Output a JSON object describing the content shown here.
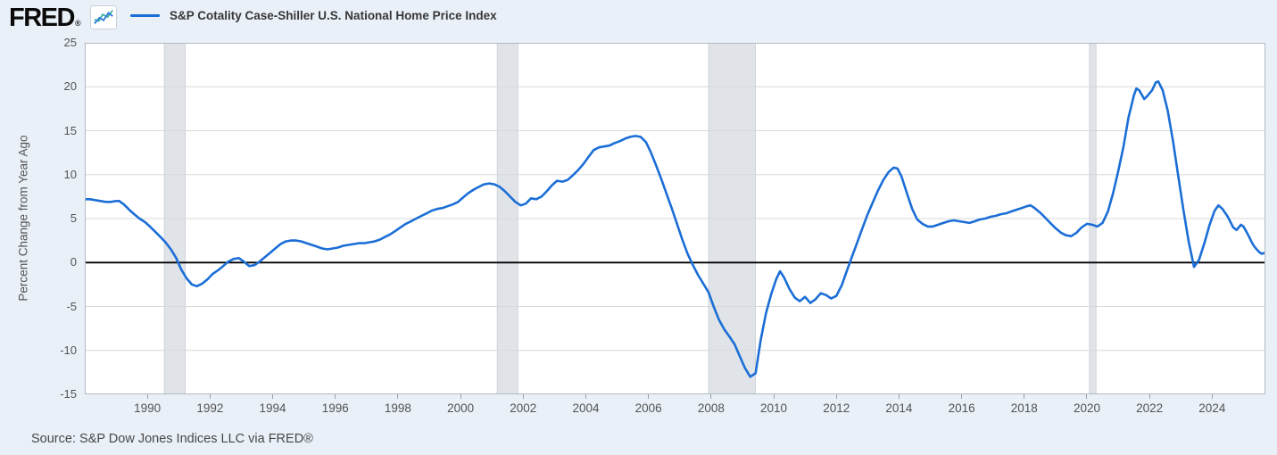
{
  "header": {
    "logo_text": "FRED",
    "logo_reg": "®"
  },
  "legend": {
    "label": "S&P Cotality Case-Shiller U.S. National Home Price Index"
  },
  "footer": {
    "source": "Source: S&P Dow Jones Indices LLC via FRED®"
  },
  "icon": {
    "line1_color": "#44b3a3",
    "line2_color": "#2f7ed8"
  },
  "colors": {
    "background": "#e9f0f8",
    "plot_background": "#ffffff",
    "line": "#1b6ed6",
    "grid": "#d8d8d8",
    "zero_line": "#000000",
    "plot_border": "#b4bac2",
    "recession_fill": "#e0e4e9",
    "recession_edge": "#c9ced5",
    "tick_text": "#535353"
  },
  "chart_data": {
    "type": "line",
    "title": "S&P Cotality Case-Shiller U.S. National Home Price Index",
    "xlabel": "",
    "ylabel": "Percent Change from Year Ago",
    "x_range": [
      1988.0,
      2025.7
    ],
    "ylim": [
      -15,
      25
    ],
    "y_ticks": [
      25,
      20,
      15,
      10,
      5,
      0,
      -5,
      -10,
      -15
    ],
    "x_ticks": [
      1990,
      1992,
      1994,
      1996,
      1998,
      2000,
      2002,
      2004,
      2006,
      2008,
      2010,
      2012,
      2014,
      2016,
      2018,
      2020,
      2022,
      2024
    ],
    "grid": "horizontal",
    "legend_position": "top-left",
    "zero_line": true,
    "recession_bands": [
      [
        1990.54,
        1991.21
      ],
      [
        2001.17,
        2001.83
      ],
      [
        2007.92,
        2009.42
      ],
      [
        2020.08,
        2020.29
      ]
    ],
    "series": [
      {
        "name": "S&P Cotality Case-Shiller U.S. National Home Price Index",
        "units": "Percent Change from Year Ago",
        "points": [
          [
            1988.0,
            7.2
          ],
          [
            1988.17,
            7.2
          ],
          [
            1988.33,
            7.1
          ],
          [
            1988.5,
            7.0
          ],
          [
            1988.67,
            6.9
          ],
          [
            1988.83,
            6.9
          ],
          [
            1989.0,
            7.0
          ],
          [
            1989.1,
            7.0
          ],
          [
            1989.25,
            6.6
          ],
          [
            1989.42,
            6.0
          ],
          [
            1989.58,
            5.5
          ],
          [
            1989.75,
            5.0
          ],
          [
            1989.92,
            4.6
          ],
          [
            1990.08,
            4.1
          ],
          [
            1990.25,
            3.5
          ],
          [
            1990.42,
            2.9
          ],
          [
            1990.58,
            2.3
          ],
          [
            1990.75,
            1.5
          ],
          [
            1990.92,
            0.5
          ],
          [
            1991.08,
            -0.8
          ],
          [
            1991.25,
            -1.8
          ],
          [
            1991.42,
            -2.5
          ],
          [
            1991.58,
            -2.7
          ],
          [
            1991.75,
            -2.4
          ],
          [
            1991.92,
            -1.9
          ],
          [
            1992.08,
            -1.3
          ],
          [
            1992.25,
            -0.9
          ],
          [
            1992.42,
            -0.4
          ],
          [
            1992.58,
            0.1
          ],
          [
            1992.75,
            0.4
          ],
          [
            1992.92,
            0.5
          ],
          [
            1993.08,
            0.1
          ],
          [
            1993.25,
            -0.4
          ],
          [
            1993.42,
            -0.3
          ],
          [
            1993.58,
            0.1
          ],
          [
            1993.75,
            0.6
          ],
          [
            1993.92,
            1.1
          ],
          [
            1994.08,
            1.6
          ],
          [
            1994.25,
            2.1
          ],
          [
            1994.42,
            2.4
          ],
          [
            1994.58,
            2.5
          ],
          [
            1994.75,
            2.5
          ],
          [
            1994.92,
            2.4
          ],
          [
            1995.08,
            2.2
          ],
          [
            1995.25,
            2.0
          ],
          [
            1995.42,
            1.8
          ],
          [
            1995.58,
            1.6
          ],
          [
            1995.75,
            1.5
          ],
          [
            1995.92,
            1.6
          ],
          [
            1996.08,
            1.7
          ],
          [
            1996.25,
            1.9
          ],
          [
            1996.42,
            2.0
          ],
          [
            1996.58,
            2.1
          ],
          [
            1996.75,
            2.2
          ],
          [
            1996.92,
            2.2
          ],
          [
            1997.08,
            2.3
          ],
          [
            1997.25,
            2.4
          ],
          [
            1997.42,
            2.6
          ],
          [
            1997.58,
            2.9
          ],
          [
            1997.75,
            3.2
          ],
          [
            1997.92,
            3.6
          ],
          [
            1998.08,
            4.0
          ],
          [
            1998.25,
            4.4
          ],
          [
            1998.42,
            4.7
          ],
          [
            1998.58,
            5.0
          ],
          [
            1998.75,
            5.3
          ],
          [
            1998.92,
            5.6
          ],
          [
            1999.08,
            5.9
          ],
          [
            1999.25,
            6.1
          ],
          [
            1999.42,
            6.2
          ],
          [
            1999.58,
            6.4
          ],
          [
            1999.75,
            6.6
          ],
          [
            1999.92,
            6.9
          ],
          [
            2000.08,
            7.4
          ],
          [
            2000.25,
            7.9
          ],
          [
            2000.42,
            8.3
          ],
          [
            2000.58,
            8.6
          ],
          [
            2000.75,
            8.9
          ],
          [
            2000.92,
            9.0
          ],
          [
            2001.08,
            8.9
          ],
          [
            2001.25,
            8.6
          ],
          [
            2001.42,
            8.1
          ],
          [
            2001.58,
            7.5
          ],
          [
            2001.75,
            6.9
          ],
          [
            2001.92,
            6.5
          ],
          [
            2002.08,
            6.7
          ],
          [
            2002.25,
            7.3
          ],
          [
            2002.42,
            7.2
          ],
          [
            2002.58,
            7.5
          ],
          [
            2002.75,
            8.1
          ],
          [
            2002.92,
            8.8
          ],
          [
            2003.08,
            9.3
          ],
          [
            2003.25,
            9.2
          ],
          [
            2003.42,
            9.4
          ],
          [
            2003.58,
            9.9
          ],
          [
            2003.75,
            10.5
          ],
          [
            2003.92,
            11.2
          ],
          [
            2004.08,
            12.0
          ],
          [
            2004.25,
            12.8
          ],
          [
            2004.42,
            13.1
          ],
          [
            2004.58,
            13.2
          ],
          [
            2004.75,
            13.3
          ],
          [
            2004.92,
            13.6
          ],
          [
            2005.08,
            13.8
          ],
          [
            2005.25,
            14.1
          ],
          [
            2005.42,
            14.3
          ],
          [
            2005.58,
            14.4
          ],
          [
            2005.75,
            14.3
          ],
          [
            2005.92,
            13.7
          ],
          [
            2006.08,
            12.5
          ],
          [
            2006.25,
            11.0
          ],
          [
            2006.42,
            9.4
          ],
          [
            2006.58,
            7.8
          ],
          [
            2006.75,
            6.1
          ],
          [
            2006.92,
            4.3
          ],
          [
            2007.08,
            2.6
          ],
          [
            2007.25,
            1.0
          ],
          [
            2007.42,
            -0.3
          ],
          [
            2007.58,
            -1.4
          ],
          [
            2007.75,
            -2.4
          ],
          [
            2007.92,
            -3.4
          ],
          [
            2008.08,
            -5.0
          ],
          [
            2008.25,
            -6.5
          ],
          [
            2008.42,
            -7.6
          ],
          [
            2008.58,
            -8.4
          ],
          [
            2008.75,
            -9.3
          ],
          [
            2008.92,
            -10.7
          ],
          [
            2009.08,
            -12.0
          ],
          [
            2009.25,
            -13.0
          ],
          [
            2009.42,
            -12.6
          ],
          [
            2009.58,
            -8.9
          ],
          [
            2009.75,
            -5.8
          ],
          [
            2009.92,
            -3.6
          ],
          [
            2010.08,
            -1.9
          ],
          [
            2010.2,
            -1.0
          ],
          [
            2010.33,
            -1.7
          ],
          [
            2010.5,
            -3.0
          ],
          [
            2010.67,
            -4.0
          ],
          [
            2010.83,
            -4.4
          ],
          [
            2011.0,
            -3.9
          ],
          [
            2011.17,
            -4.6
          ],
          [
            2011.33,
            -4.2
          ],
          [
            2011.5,
            -3.5
          ],
          [
            2011.67,
            -3.7
          ],
          [
            2011.83,
            -4.1
          ],
          [
            2012.0,
            -3.8
          ],
          [
            2012.17,
            -2.6
          ],
          [
            2012.33,
            -1.0
          ],
          [
            2012.5,
            0.7
          ],
          [
            2012.67,
            2.3
          ],
          [
            2012.83,
            3.9
          ],
          [
            2013.0,
            5.5
          ],
          [
            2013.17,
            6.9
          ],
          [
            2013.33,
            8.2
          ],
          [
            2013.5,
            9.4
          ],
          [
            2013.67,
            10.3
          ],
          [
            2013.83,
            10.8
          ],
          [
            2013.95,
            10.7
          ],
          [
            2014.08,
            9.8
          ],
          [
            2014.25,
            7.9
          ],
          [
            2014.42,
            6.1
          ],
          [
            2014.58,
            4.9
          ],
          [
            2014.75,
            4.4
          ],
          [
            2014.92,
            4.1
          ],
          [
            2015.08,
            4.1
          ],
          [
            2015.25,
            4.3
          ],
          [
            2015.42,
            4.5
          ],
          [
            2015.58,
            4.7
          ],
          [
            2015.75,
            4.8
          ],
          [
            2015.92,
            4.7
          ],
          [
            2016.08,
            4.6
          ],
          [
            2016.25,
            4.5
          ],
          [
            2016.42,
            4.7
          ],
          [
            2016.58,
            4.9
          ],
          [
            2016.75,
            5.0
          ],
          [
            2016.92,
            5.2
          ],
          [
            2017.08,
            5.3
          ],
          [
            2017.25,
            5.5
          ],
          [
            2017.42,
            5.6
          ],
          [
            2017.58,
            5.8
          ],
          [
            2017.75,
            6.0
          ],
          [
            2017.92,
            6.2
          ],
          [
            2018.08,
            6.4
          ],
          [
            2018.2,
            6.5
          ],
          [
            2018.33,
            6.2
          ],
          [
            2018.5,
            5.7
          ],
          [
            2018.67,
            5.1
          ],
          [
            2018.83,
            4.5
          ],
          [
            2019.0,
            3.9
          ],
          [
            2019.17,
            3.4
          ],
          [
            2019.33,
            3.1
          ],
          [
            2019.5,
            3.0
          ],
          [
            2019.67,
            3.4
          ],
          [
            2019.83,
            4.0
          ],
          [
            2020.0,
            4.4
          ],
          [
            2020.17,
            4.3
          ],
          [
            2020.33,
            4.1
          ],
          [
            2020.5,
            4.5
          ],
          [
            2020.67,
            5.8
          ],
          [
            2020.83,
            7.8
          ],
          [
            2021.0,
            10.4
          ],
          [
            2021.17,
            13.2
          ],
          [
            2021.33,
            16.5
          ],
          [
            2021.5,
            19.0
          ],
          [
            2021.58,
            19.8
          ],
          [
            2021.67,
            19.6
          ],
          [
            2021.83,
            18.6
          ],
          [
            2021.92,
            18.9
          ],
          [
            2022.08,
            19.6
          ],
          [
            2022.2,
            20.5
          ],
          [
            2022.28,
            20.6
          ],
          [
            2022.42,
            19.6
          ],
          [
            2022.58,
            17.3
          ],
          [
            2022.75,
            13.8
          ],
          [
            2022.92,
            9.8
          ],
          [
            2023.08,
            6.0
          ],
          [
            2023.25,
            2.4
          ],
          [
            2023.42,
            -0.5
          ],
          [
            2023.58,
            0.3
          ],
          [
            2023.75,
            2.2
          ],
          [
            2023.92,
            4.3
          ],
          [
            2024.08,
            5.9
          ],
          [
            2024.2,
            6.5
          ],
          [
            2024.33,
            6.1
          ],
          [
            2024.5,
            5.2
          ],
          [
            2024.67,
            4.0
          ],
          [
            2024.78,
            3.7
          ],
          [
            2024.92,
            4.3
          ],
          [
            2025.0,
            4.1
          ],
          [
            2025.08,
            3.6
          ],
          [
            2025.17,
            3.0
          ],
          [
            2025.25,
            2.4
          ],
          [
            2025.33,
            1.9
          ],
          [
            2025.42,
            1.5
          ],
          [
            2025.5,
            1.2
          ],
          [
            2025.58,
            1.0
          ],
          [
            2025.7,
            1.1
          ]
        ]
      }
    ]
  }
}
